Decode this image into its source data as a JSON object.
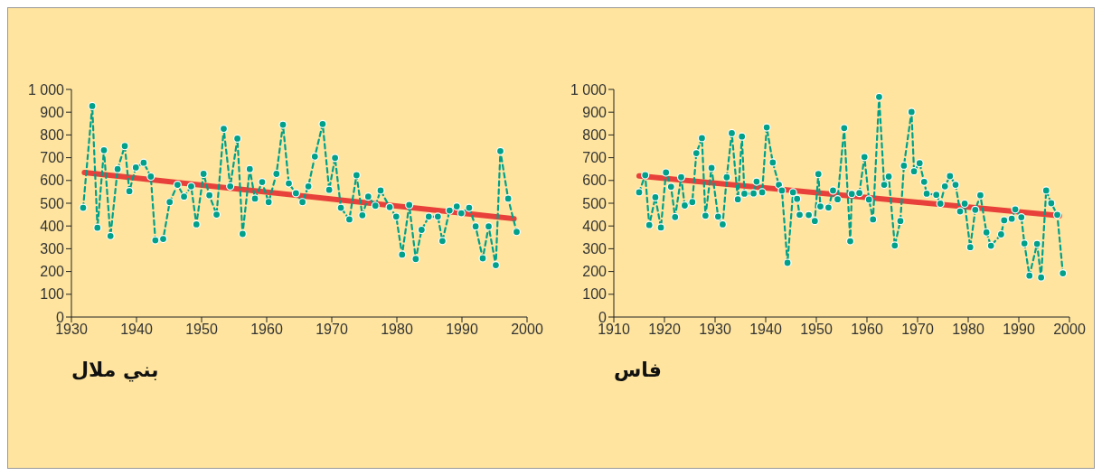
{
  "chart_data": [
    {
      "type": "line",
      "title": "بني ملال",
      "xlim": [
        1930,
        2000
      ],
      "xticks": [
        1930,
        1940,
        1950,
        1960,
        1970,
        1980,
        1990,
        2000
      ],
      "ylim": [
        0,
        1000
      ],
      "yticks": [
        0,
        100,
        200,
        300,
        400,
        500,
        600,
        700,
        800,
        900,
        {
          "value": 1000,
          "label": "1 000"
        }
      ],
      "marker": "circle",
      "line_style": "dashed",
      "series": [
        {
          "color": "#00a08a",
          "x": [
            1931.8,
            1933.2,
            1934,
            1935,
            1936,
            1937.1,
            1938.2,
            1938.9,
            1939.9,
            1941.1,
            1942.2,
            1942.9,
            1944.1,
            1945.1,
            1946.3,
            1947.3,
            1948.4,
            1949.2,
            1950.3,
            1951.2,
            1952.3,
            1953.4,
            1954.4,
            1955.5,
            1956.3,
            1957.4,
            1958.2,
            1959.3,
            1960.3,
            1961.5,
            1962.5,
            1963.4,
            1964.5,
            1965.5,
            1966.4,
            1967.4,
            1968.6,
            1969.6,
            1970.5,
            1971.4,
            1972.7,
            1973.8,
            1974.7,
            1975.6,
            1976.7,
            1977.5,
            1978.9,
            1979.9,
            1980.8,
            1981.9,
            1982.9,
            1983.8,
            1984.9,
            1986.3,
            1987,
            1988.1,
            1989.2,
            1989.9,
            1991.1,
            1992.1,
            1993.2,
            1994.1,
            1995.2,
            1995.9,
            1997.1,
            1998.4
          ],
          "values": [
            480,
            927,
            392,
            733,
            356,
            650,
            751,
            553,
            657,
            678,
            617,
            337,
            343,
            505,
            581,
            529,
            574,
            407,
            629,
            535,
            450,
            827,
            574,
            784,
            365,
            650,
            520,
            593,
            505,
            629,
            845,
            587,
            544,
            505,
            574,
            705,
            848,
            559,
            699,
            480,
            429,
            623,
            447,
            529,
            489,
            556,
            483,
            441,
            274,
            492,
            255,
            383,
            441,
            441,
            334,
            468,
            486,
            456,
            480,
            398,
            258,
            398,
            228,
            729,
            520,
            374
          ]
        },
        {
          "type": "line",
          "color": "#e8403a",
          "x": [
            1932,
            1998
          ],
          "values": [
            635,
            432
          ],
          "marker": "none",
          "line_style": "solid"
        }
      ]
    },
    {
      "type": "line",
      "title": "فاس",
      "xlim": [
        1910,
        2000
      ],
      "xticks": [
        1910,
        1920,
        1930,
        1940,
        1950,
        1960,
        1970,
        1980,
        1990,
        2000
      ],
      "ylim": [
        0,
        1000
      ],
      "yticks": [
        0,
        100,
        200,
        300,
        400,
        500,
        600,
        700,
        800,
        900,
        {
          "value": 1000,
          "label": "1 000"
        }
      ],
      "marker": "circle",
      "line_style": "dashed",
      "series": [
        {
          "color": "#00a08a",
          "x": [
            1915,
            1916.2,
            1917,
            1918.2,
            1919.3,
            1920.3,
            1921.3,
            1922.1,
            1923.3,
            1924,
            1925.5,
            1926.3,
            1927.4,
            1928.1,
            1929.3,
            1930.6,
            1931.5,
            1932.3,
            1933.3,
            1934.5,
            1935.3,
            1935.8,
            1937.6,
            1938.2,
            1939.3,
            1940.2,
            1941.4,
            1942.6,
            1943.2,
            1944.3,
            1945.4,
            1946.2,
            1946.7,
            1948.5,
            1949.7,
            1950.4,
            1950.8,
            1952.4,
            1953.3,
            1954.2,
            1955.5,
            1956.7,
            1957,
            1958.5,
            1959.5,
            1960.4,
            1961.2,
            1962.4,
            1963.4,
            1964.3,
            1965.5,
            1966.6,
            1967.3,
            1968.8,
            1969.3,
            1970.4,
            1971.3,
            1971.8,
            1973.7,
            1974.5,
            1975.4,
            1976.4,
            1977.5,
            1978.4,
            1979.3,
            1980.4,
            1981.4,
            1982.4,
            1983.6,
            1984.5,
            1986.5,
            1987.1,
            1988.6,
            1989.3,
            1990.5,
            1991.1,
            1992.1,
            1993.6,
            1994.4,
            1995.4,
            1996.4,
            1997.6,
            1998.7
          ],
          "values": [
            548,
            623,
            404,
            526,
            393,
            635,
            572,
            439,
            614,
            490,
            505,
            720,
            786,
            445,
            655,
            441,
            407,
            614,
            808,
            517,
            793,
            542,
            543,
            595,
            548,
            833,
            679,
            581,
            556,
            238,
            548,
            519,
            449,
            448,
            422,
            628,
            486,
            481,
            556,
            517,
            830,
            333,
            541,
            545,
            703,
            516,
            429,
            967,
            581,
            617,
            314,
            422,
            665,
            901,
            640,
            676,
            594,
            542,
            537,
            498,
            574,
            619,
            581,
            464,
            498,
            307,
            471,
            535,
            372,
            313,
            363,
            425,
            432,
            473,
            438,
            323,
            182,
            321,
            174,
            556,
            500,
            449,
            192
          ]
        },
        {
          "type": "line",
          "color": "#e8403a",
          "x": [
            1915,
            1998
          ],
          "values": [
            620,
            445
          ],
          "marker": "none",
          "line_style": "solid"
        }
      ]
    }
  ]
}
